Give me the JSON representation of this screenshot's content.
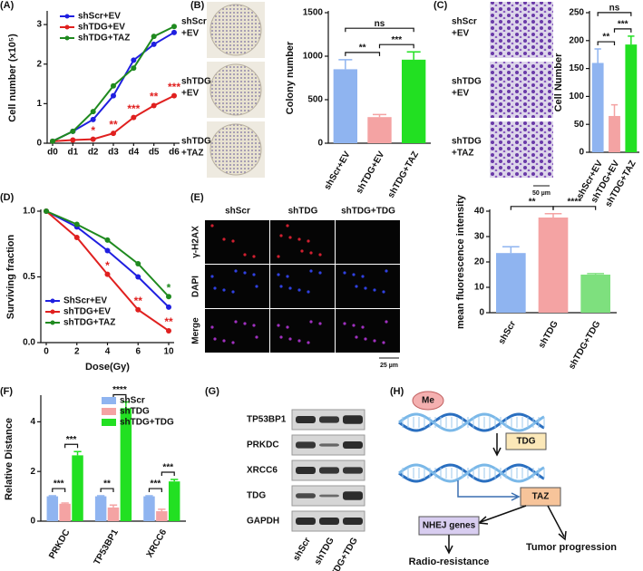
{
  "panel_labels": [
    "(A)",
    "(B)",
    "(C)",
    "(D)",
    "(E)",
    "(F)",
    "(G)",
    "(H)"
  ],
  "chart_data": [
    {
      "type": "line",
      "y_label": "Cell number (x10⁵)",
      "categories": [
        "d0",
        "d1",
        "d2",
        "d3",
        "d4",
        "d5",
        "d6"
      ],
      "ylim": [
        0,
        3.3
      ],
      "yticks": [
        0,
        1,
        2,
        3
      ],
      "legend": "upper-left",
      "series": [
        {
          "name": "shScr+EV",
          "color": "#1f1fe0",
          "values": [
            0.05,
            0.3,
            0.6,
            1.2,
            2.1,
            2.5,
            2.8
          ]
        },
        {
          "name": "shTDG+EV",
          "color": "#e0201f",
          "values": [
            0.05,
            0.08,
            0.1,
            0.25,
            0.65,
            0.95,
            1.2
          ],
          "labels": [
            null,
            null,
            "*",
            "**",
            "***",
            "**",
            "***"
          ]
        },
        {
          "name": "shTDG+TAZ",
          "color": "#1f8a1f",
          "values": [
            0.05,
            0.3,
            0.8,
            1.45,
            1.9,
            2.7,
            2.95
          ]
        }
      ]
    },
    {
      "type": "bar",
      "y_label": "Colony number",
      "categories": [
        "shScr+EV",
        "shTDG+EV",
        "shTDG+TAZ"
      ],
      "values": [
        850,
        300,
        960
      ],
      "errors": [
        110,
        30,
        90
      ],
      "colors": [
        "#8fb4f0",
        "#f4a3a3",
        "#22e022"
      ],
      "ylim": [
        0,
        1500
      ],
      "yticks": [
        0,
        500,
        1000,
        1500
      ],
      "comparisons": [
        {
          "pair": [
            "shScr+EV",
            "shTDG+EV"
          ],
          "label": "**"
        },
        {
          "pair": [
            "shTDG+EV",
            "shTDG+TAZ"
          ],
          "label": "***"
        },
        {
          "pair": [
            "shScr+EV",
            "shTDG+TAZ"
          ],
          "label": "ns"
        }
      ]
    },
    {
      "type": "bar",
      "y_label": "Cell Number",
      "categories": [
        "shScr+EV",
        "shTDG+EV",
        "shTDG+TAZ"
      ],
      "values": [
        160,
        65,
        193
      ],
      "errors": [
        25,
        20,
        15
      ],
      "colors": [
        "#8fb4f0",
        "#f4a3a3",
        "#22e022"
      ],
      "ylim": [
        0,
        250
      ],
      "yticks": [
        0,
        50,
        100,
        150,
        200,
        250
      ],
      "comparisons": [
        {
          "pair": [
            "shScr+EV",
            "shTDG+EV"
          ],
          "label": "**"
        },
        {
          "pair": [
            "shTDG+EV",
            "shTDG+TAZ"
          ],
          "label": "***"
        },
        {
          "pair": [
            "shScr+EV",
            "shTDG+TAZ"
          ],
          "label": "ns"
        }
      ]
    },
    {
      "type": "line",
      "x_label": "Dose(Gy)",
      "y_label": "Surviving fraction",
      "categories": [
        "0",
        "2",
        "4",
        "6",
        "10"
      ],
      "ylim": [
        0,
        1
      ],
      "yticks": [
        {
          "value": 0,
          "label": "0.0"
        },
        {
          "value": 0.5,
          "label": "0.5"
        },
        {
          "value": 1,
          "label": "1.0"
        }
      ],
      "legend": "lower-left",
      "series": [
        {
          "name": "ShScr+EV",
          "color": "#1f1fe0",
          "values": [
            1,
            0.88,
            0.7,
            0.5,
            0.27
          ]
        },
        {
          "name": "shTDG+EV",
          "color": "#e0201f",
          "values": [
            1,
            0.8,
            0.52,
            0.25,
            0.09
          ],
          "labels": [
            null,
            null,
            "*",
            "**",
            "**"
          ]
        },
        {
          "name": "shTDG+TAZ",
          "color": "#1f8a1f",
          "values": [
            1,
            0.9,
            0.78,
            0.6,
            0.35
          ],
          "labels": [
            null,
            null,
            null,
            null,
            "*"
          ]
        }
      ]
    },
    {
      "type": "bar",
      "y_label": "mean fluorescence intensity",
      "categories": [
        "shScr",
        "shTDG",
        "shTDG+TDG"
      ],
      "values": [
        23.5,
        37.5,
        15
      ],
      "errors": [
        2.5,
        1.5,
        0.4
      ],
      "colors": [
        "#8fb4f0",
        "#f4a3a3",
        "#7ee07e"
      ],
      "ylim": [
        0,
        40
      ],
      "yticks": [
        0,
        10,
        20,
        30,
        40
      ],
      "comparisons": [
        {
          "pair": [
            "shScr",
            "shTDG"
          ],
          "label": "**"
        },
        {
          "pair": [
            "shTDG",
            "shTDG+TDG"
          ],
          "label": "****"
        }
      ]
    },
    {
      "type": "grouped-bar",
      "y_label": "Relative Distance",
      "categories": [
        "PRKDC",
        "TP53BP1",
        "XRCC6"
      ],
      "ylim": [
        0,
        5
      ],
      "yticks": [
        0,
        2,
        4
      ],
      "legend": "upper-right",
      "series": [
        {
          "name": "shScr",
          "color": "#8fb4f0",
          "values": [
            1,
            1,
            1
          ],
          "errors": [
            0.02,
            0.02,
            0.02
          ]
        },
        {
          "name": "shTDG",
          "color": "#f4a3a3",
          "values": [
            0.7,
            0.55,
            0.4
          ],
          "errors": [
            0.03,
            0.1,
            0.08
          ]
        },
        {
          "name": "shTDG+TDG",
          "color": "#22e022",
          "values": [
            2.65,
            4.55,
            1.6
          ],
          "errors": [
            0.15,
            0.25,
            0.08
          ]
        }
      ],
      "comparisons": [
        {
          "category": "PRKDC",
          "pair": [
            "shScr",
            "shTDG"
          ],
          "label": "***"
        },
        {
          "category": "PRKDC",
          "pair": [
            "shTDG",
            "shTDG+TDG"
          ],
          "label": "***"
        },
        {
          "category": "TP53BP1",
          "pair": [
            "shScr",
            "shTDG"
          ],
          "label": "**"
        },
        {
          "category": "TP53BP1",
          "pair": [
            "shTDG",
            "shTDG+TDG"
          ],
          "label": "****"
        },
        {
          "category": "XRCC6",
          "pair": [
            "shScr",
            "shTDG"
          ],
          "label": "***"
        },
        {
          "category": "XRCC6",
          "pair": [
            "shTDG",
            "shTDG+TDG"
          ],
          "label": "***"
        }
      ]
    }
  ],
  "colony_images": {
    "labels": [
      [
        "shScr",
        "+EV"
      ],
      [
        "shTDG",
        "+EV"
      ],
      [
        "shTDG",
        "+TAZ"
      ]
    ]
  },
  "migration_images": {
    "labels": [
      [
        "shScr",
        "+EV"
      ],
      [
        "shTDG",
        "+EV"
      ],
      [
        "shTDG",
        "+TAZ"
      ]
    ],
    "scale_bar": "50 µm"
  },
  "if_images": {
    "columns": [
      "shScr",
      "shTDG",
      "shTDG+TDG"
    ],
    "rows": [
      "γ-H2AX",
      "DAPI",
      "Merge"
    ],
    "scale_bar": "25 µm"
  },
  "blot": {
    "proteins": [
      "TP53BP1",
      "PRKDC",
      "XRCC6",
      "TDG",
      "GAPDH"
    ],
    "lanes": [
      "shScr",
      "shTDG",
      "shTDG+TDG"
    ]
  },
  "diagram": {
    "methyl": "Me",
    "tdg": "TDG",
    "taz": "TAZ",
    "nhej": "NHEJ genes",
    "radio": "Radio-resistance",
    "tumor": "Tumor progression"
  }
}
